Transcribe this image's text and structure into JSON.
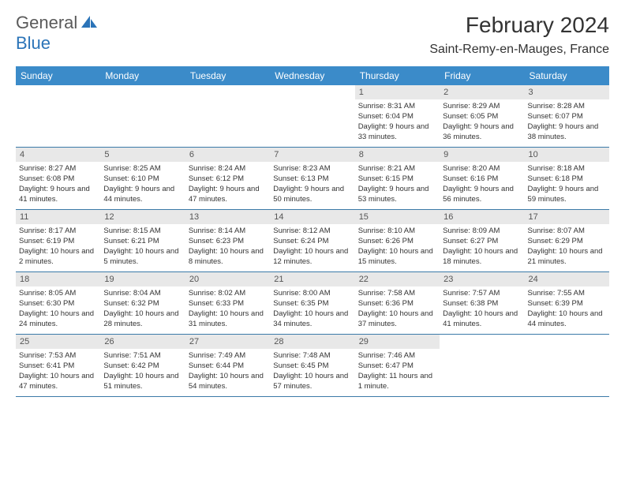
{
  "colors": {
    "header_bg": "#3b8bc9",
    "header_text": "#ffffff",
    "daynum_bg": "#e8e8e8",
    "daynum_text": "#555555",
    "cell_text": "#333333",
    "week_border": "#3b7aa8",
    "logo_gray": "#5a5a5a",
    "logo_blue": "#2b74b8"
  },
  "logo": {
    "part1": "General",
    "part2": "Blue"
  },
  "title": "February 2024",
  "location": "Saint-Remy-en-Mauges, France",
  "day_names": [
    "Sunday",
    "Monday",
    "Tuesday",
    "Wednesday",
    "Thursday",
    "Friday",
    "Saturday"
  ],
  "weeks": [
    [
      null,
      null,
      null,
      null,
      {
        "n": "1",
        "sunrise": "8:31 AM",
        "sunset": "6:04 PM",
        "daylight": "9 hours and 33 minutes."
      },
      {
        "n": "2",
        "sunrise": "8:29 AM",
        "sunset": "6:05 PM",
        "daylight": "9 hours and 36 minutes."
      },
      {
        "n": "3",
        "sunrise": "8:28 AM",
        "sunset": "6:07 PM",
        "daylight": "9 hours and 38 minutes."
      }
    ],
    [
      {
        "n": "4",
        "sunrise": "8:27 AM",
        "sunset": "6:08 PM",
        "daylight": "9 hours and 41 minutes."
      },
      {
        "n": "5",
        "sunrise": "8:25 AM",
        "sunset": "6:10 PM",
        "daylight": "9 hours and 44 minutes."
      },
      {
        "n": "6",
        "sunrise": "8:24 AM",
        "sunset": "6:12 PM",
        "daylight": "9 hours and 47 minutes."
      },
      {
        "n": "7",
        "sunrise": "8:23 AM",
        "sunset": "6:13 PM",
        "daylight": "9 hours and 50 minutes."
      },
      {
        "n": "8",
        "sunrise": "8:21 AM",
        "sunset": "6:15 PM",
        "daylight": "9 hours and 53 minutes."
      },
      {
        "n": "9",
        "sunrise": "8:20 AM",
        "sunset": "6:16 PM",
        "daylight": "9 hours and 56 minutes."
      },
      {
        "n": "10",
        "sunrise": "8:18 AM",
        "sunset": "6:18 PM",
        "daylight": "9 hours and 59 minutes."
      }
    ],
    [
      {
        "n": "11",
        "sunrise": "8:17 AM",
        "sunset": "6:19 PM",
        "daylight": "10 hours and 2 minutes."
      },
      {
        "n": "12",
        "sunrise": "8:15 AM",
        "sunset": "6:21 PM",
        "daylight": "10 hours and 5 minutes."
      },
      {
        "n": "13",
        "sunrise": "8:14 AM",
        "sunset": "6:23 PM",
        "daylight": "10 hours and 8 minutes."
      },
      {
        "n": "14",
        "sunrise": "8:12 AM",
        "sunset": "6:24 PM",
        "daylight": "10 hours and 12 minutes."
      },
      {
        "n": "15",
        "sunrise": "8:10 AM",
        "sunset": "6:26 PM",
        "daylight": "10 hours and 15 minutes."
      },
      {
        "n": "16",
        "sunrise": "8:09 AM",
        "sunset": "6:27 PM",
        "daylight": "10 hours and 18 minutes."
      },
      {
        "n": "17",
        "sunrise": "8:07 AM",
        "sunset": "6:29 PM",
        "daylight": "10 hours and 21 minutes."
      }
    ],
    [
      {
        "n": "18",
        "sunrise": "8:05 AM",
        "sunset": "6:30 PM",
        "daylight": "10 hours and 24 minutes."
      },
      {
        "n": "19",
        "sunrise": "8:04 AM",
        "sunset": "6:32 PM",
        "daylight": "10 hours and 28 minutes."
      },
      {
        "n": "20",
        "sunrise": "8:02 AM",
        "sunset": "6:33 PM",
        "daylight": "10 hours and 31 minutes."
      },
      {
        "n": "21",
        "sunrise": "8:00 AM",
        "sunset": "6:35 PM",
        "daylight": "10 hours and 34 minutes."
      },
      {
        "n": "22",
        "sunrise": "7:58 AM",
        "sunset": "6:36 PM",
        "daylight": "10 hours and 37 minutes."
      },
      {
        "n": "23",
        "sunrise": "7:57 AM",
        "sunset": "6:38 PM",
        "daylight": "10 hours and 41 minutes."
      },
      {
        "n": "24",
        "sunrise": "7:55 AM",
        "sunset": "6:39 PM",
        "daylight": "10 hours and 44 minutes."
      }
    ],
    [
      {
        "n": "25",
        "sunrise": "7:53 AM",
        "sunset": "6:41 PM",
        "daylight": "10 hours and 47 minutes."
      },
      {
        "n": "26",
        "sunrise": "7:51 AM",
        "sunset": "6:42 PM",
        "daylight": "10 hours and 51 minutes."
      },
      {
        "n": "27",
        "sunrise": "7:49 AM",
        "sunset": "6:44 PM",
        "daylight": "10 hours and 54 minutes."
      },
      {
        "n": "28",
        "sunrise": "7:48 AM",
        "sunset": "6:45 PM",
        "daylight": "10 hours and 57 minutes."
      },
      {
        "n": "29",
        "sunrise": "7:46 AM",
        "sunset": "6:47 PM",
        "daylight": "11 hours and 1 minute."
      },
      null,
      null
    ]
  ],
  "labels": {
    "sunrise": "Sunrise: ",
    "sunset": "Sunset: ",
    "daylight": "Daylight: "
  }
}
